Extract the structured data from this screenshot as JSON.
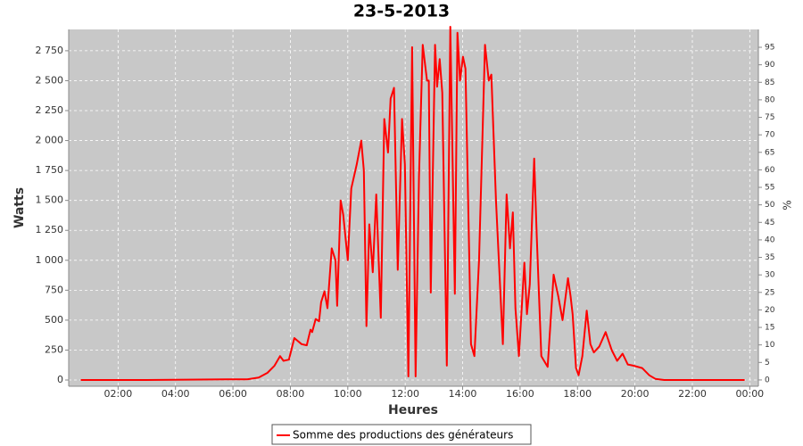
{
  "chart_data": {
    "type": "line",
    "title": "23-5-2013",
    "xlabel": "Heures",
    "ylabel": "Watts",
    "y2label": "%",
    "x": [
      0.7,
      3.0,
      5.8,
      6.5,
      6.9,
      7.2,
      7.45,
      7.64,
      7.76,
      7.95,
      8.14,
      8.39,
      8.57,
      8.7,
      8.76,
      8.88,
      9.0,
      9.07,
      9.19,
      9.29,
      9.44,
      9.57,
      9.63,
      9.75,
      9.84,
      10.0,
      10.12,
      10.31,
      10.47,
      10.56,
      10.65,
      10.75,
      10.87,
      10.99,
      11.15,
      11.27,
      11.4,
      11.49,
      11.61,
      11.74,
      11.89,
      11.99,
      12.11,
      12.24,
      12.36,
      12.48,
      12.61,
      12.76,
      12.82,
      12.89,
      13.04,
      13.11,
      13.2,
      13.29,
      13.45,
      13.57,
      13.73,
      13.82,
      13.91,
      14.01,
      14.1,
      14.29,
      14.41,
      14.57,
      14.78,
      14.91,
      15.0,
      15.16,
      15.4,
      15.53,
      15.65,
      15.75,
      15.84,
      15.96,
      16.15,
      16.24,
      16.34,
      16.49,
      16.58,
      16.74,
      16.96,
      17.17,
      17.33,
      17.48,
      17.67,
      17.76,
      17.83,
      17.95,
      18.04,
      18.17,
      18.32,
      18.45,
      18.57,
      18.76,
      18.98,
      19.19,
      19.38,
      19.57,
      19.75,
      19.94,
      20.25,
      20.5,
      20.71,
      21.02,
      23.82
    ],
    "series": [
      {
        "name": "Somme des productions des  générateurs",
        "color": "#ff0000",
        "values": [
          0,
          0,
          5,
          5,
          20,
          60,
          120,
          200,
          160,
          170,
          350,
          300,
          290,
          420,
          400,
          510,
          490,
          650,
          740,
          600,
          1100,
          1000,
          620,
          1500,
          1380,
          1000,
          1600,
          1800,
          2000,
          1750,
          450,
          1300,
          900,
          1550,
          520,
          2180,
          1900,
          2350,
          2440,
          920,
          2180,
          1800,
          30,
          2780,
          30,
          1700,
          2800,
          2500,
          2500,
          730,
          2800,
          2450,
          2680,
          2400,
          120,
          2950,
          720,
          2900,
          2500,
          2700,
          2600,
          300,
          200,
          1000,
          2800,
          2500,
          2550,
          1500,
          300,
          1550,
          1100,
          1400,
          600,
          200,
          980,
          550,
          800,
          1850,
          1200,
          200,
          110,
          880,
          700,
          500,
          850,
          700,
          550,
          100,
          40,
          200,
          580,
          300,
          230,
          280,
          400,
          250,
          160,
          220,
          130,
          120,
          100,
          40,
          10,
          0,
          0
        ]
      }
    ],
    "xlim": [
      0.28,
      24.3
    ],
    "xticks": [
      {
        "value": 2,
        "label": "02:00"
      },
      {
        "value": 4,
        "label": "04:00"
      },
      {
        "value": 6,
        "label": "06:00"
      },
      {
        "value": 8,
        "label": "08:00"
      },
      {
        "value": 10,
        "label": "10:00"
      },
      {
        "value": 12,
        "label": "12:00"
      },
      {
        "value": 14,
        "label": "14:00"
      },
      {
        "value": 16,
        "label": "16:00"
      },
      {
        "value": 18,
        "label": "18:00"
      },
      {
        "value": 20,
        "label": "20:00"
      },
      {
        "value": 22,
        "label": "22:00"
      },
      {
        "value": 24,
        "label": "00:00"
      }
    ],
    "ylim": [
      -52,
      2928
    ],
    "yticks": [
      0,
      250,
      500,
      750,
      {
        "value": 1000,
        "label": "1 000"
      },
      {
        "value": 1250,
        "label": "1 250"
      },
      {
        "value": 1500,
        "label": "1 500"
      },
      {
        "value": 1750,
        "label": "1 750"
      },
      {
        "value": 2000,
        "label": "2 000"
      },
      {
        "value": 2250,
        "label": "2 250"
      },
      {
        "value": 2500,
        "label": "2 500"
      },
      {
        "value": 2750,
        "label": "2 750"
      }
    ],
    "y2lim": [
      -1.8,
      100.1
    ],
    "y2ticks": [
      0,
      5,
      10,
      15,
      20,
      25,
      30,
      35,
      40,
      45,
      50,
      55,
      60,
      65,
      70,
      75,
      80,
      85,
      90,
      95
    ],
    "grid": true,
    "legend": "bottom"
  }
}
